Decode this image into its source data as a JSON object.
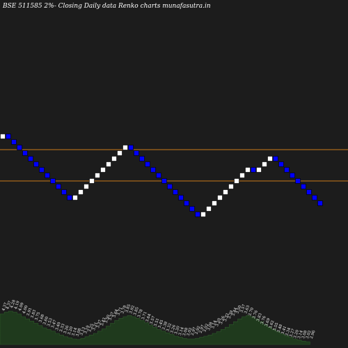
{
  "chart_data": {
    "type": "renko",
    "title": "BSE 511585 2%-  Closing Daily data  Renko  charts munafasutra.in",
    "colors": {
      "background": "#1c1c1c",
      "up_brick": "#ffffff",
      "down_brick": "#0000ff",
      "reference_lines": "#cc7a1a",
      "volume_area": "#1f3a1d"
    },
    "bricks": [
      "up",
      "down",
      "down",
      "down",
      "down",
      "down",
      "down",
      "down",
      "down",
      "down",
      "down",
      "down",
      "down",
      "up",
      "up",
      "up",
      "up",
      "up",
      "up",
      "up",
      "up",
      "up",
      "up",
      "down",
      "down",
      "down",
      "down",
      "down",
      "down",
      "down",
      "down",
      "down",
      "down",
      "down",
      "down",
      "down",
      "up",
      "up",
      "up",
      "up",
      "up",
      "up",
      "up",
      "up",
      "up",
      "down",
      "up",
      "up",
      "up",
      "down",
      "down",
      "down",
      "down",
      "down",
      "down",
      "down",
      "down",
      "down"
    ],
    "reference_line_levels": [
      4.0,
      3.72
    ],
    "volume_labels": [
      "4.37",
      "4.37",
      "4.28",
      "4.19",
      "4.09",
      "4.00",
      "3.91",
      "3.83",
      "3.75",
      "3.68",
      "3.60",
      "3.53",
      "3.47",
      "3.40",
      "3.33",
      "3.26",
      "3.20",
      "3.14",
      "3.08",
      "3.13",
      "3.19",
      "3.25",
      "3.31",
      "3.37",
      "3.43",
      "3.50",
      "3.57",
      "3.64",
      "3.71",
      "3.78",
      "3.85",
      "3.92",
      "3.85",
      "3.78",
      "3.71",
      "3.64",
      "3.57",
      "3.51",
      "3.45",
      "3.38",
      "3.32",
      "3.26",
      "3.20",
      "3.14",
      "3.08",
      "3.02",
      "2.97",
      "2.92",
      "2.97",
      "3.02",
      "3.08",
      "3.14",
      "3.20",
      "3.26",
      "3.32",
      "3.38",
      "3.44",
      "3.50",
      "3.57",
      "3.63",
      "3.70",
      "3.76",
      "3.83",
      "3.76",
      "3.69",
      "3.62",
      "3.55",
      "3.48",
      "3.41",
      "3.34",
      "3.27",
      "3.20",
      "3.14",
      "3.08",
      "3.02",
      "2.96"
    ],
    "volume_values": [
      0.55,
      0.58,
      0.6,
      0.58,
      0.55,
      0.5,
      0.46,
      0.42,
      0.38,
      0.34,
      0.3,
      0.27,
      0.24,
      0.2,
      0.17,
      0.14,
      0.12,
      0.1,
      0.09,
      0.11,
      0.14,
      0.17,
      0.2,
      0.24,
      0.28,
      0.33,
      0.38,
      0.43,
      0.47,
      0.5,
      0.52,
      0.5,
      0.47,
      0.43,
      0.39,
      0.35,
      0.31,
      0.27,
      0.24,
      0.21,
      0.18,
      0.15,
      0.13,
      0.11,
      0.1,
      0.1,
      0.11,
      0.13,
      0.15,
      0.17,
      0.2,
      0.23,
      0.27,
      0.31,
      0.36,
      0.41,
      0.46,
      0.5,
      0.52,
      0.5,
      0.46,
      0.41,
      0.36,
      0.31,
      0.27,
      0.23,
      0.19,
      0.16,
      0.13,
      0.1,
      0.08,
      0.06,
      0.05
    ]
  }
}
